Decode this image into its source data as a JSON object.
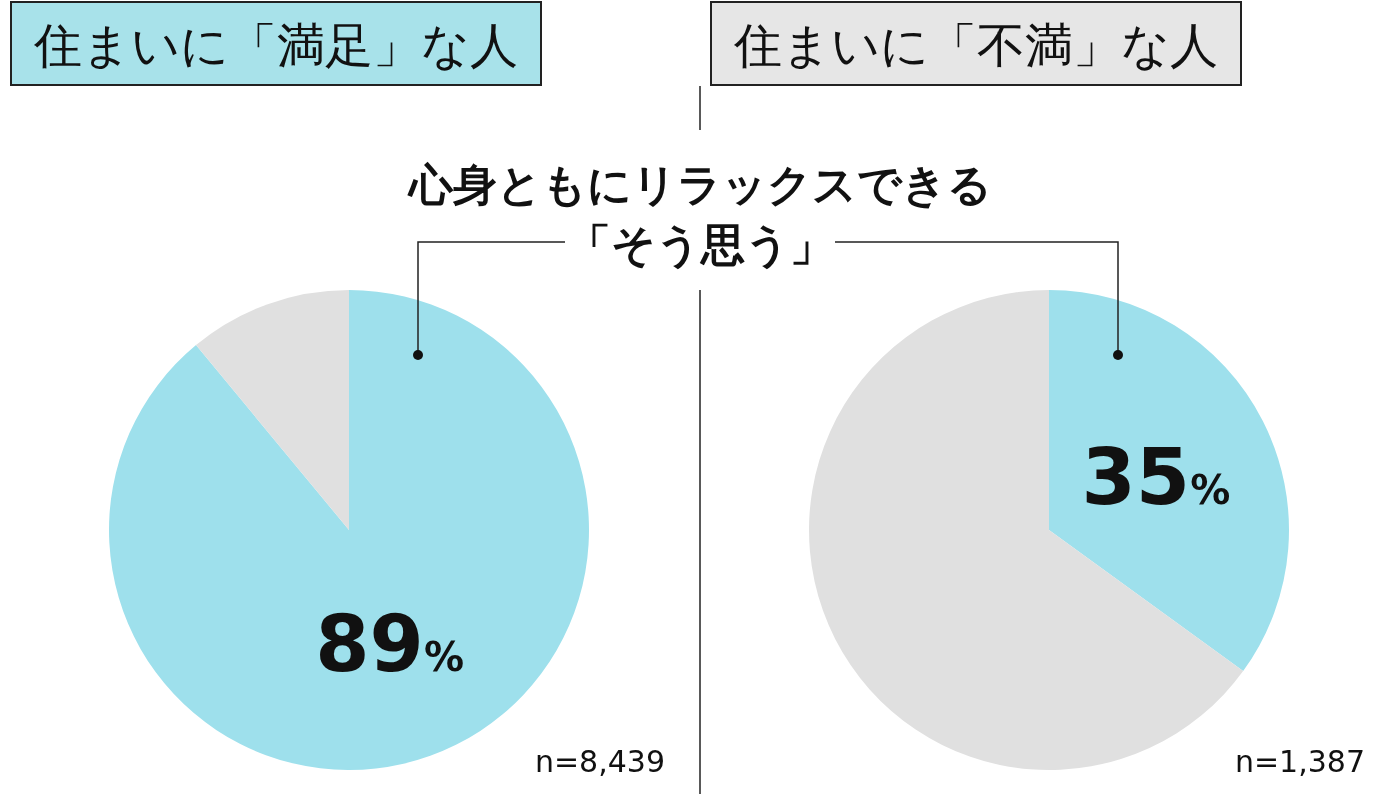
{
  "chart_data": [
    {
      "type": "pie",
      "title": "住まいに「満足」な人",
      "categories": [
        null,
        null
      ],
      "values": [
        89,
        11
      ],
      "colors": [
        "#9ee0ec",
        "#e0e0e0"
      ],
      "value_labels": [
        "89%",
        null
      ],
      "annotations": [
        "心身ともにリラックスできる",
        "「そう思う」",
        "n=8,439"
      ]
    },
    {
      "type": "pie",
      "title": "住まいに「不満」な人",
      "categories": [
        null,
        null
      ],
      "values": [
        35,
        65
      ],
      "colors": [
        "#9ee0ec",
        "#e0e0e0"
      ],
      "value_labels": [
        "35%",
        null
      ],
      "annotations": [
        "n=1,387"
      ]
    }
  ]
}
